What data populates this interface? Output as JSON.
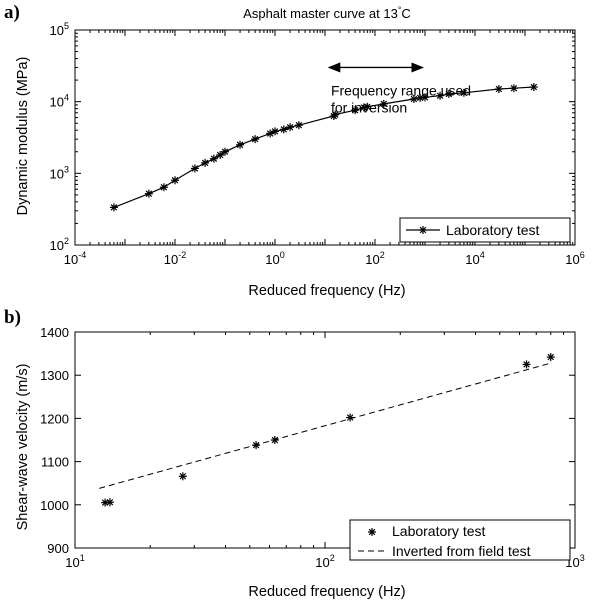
{
  "chart_data": [
    {
      "panel": "a)",
      "type": "line",
      "title": "Asphalt master curve at 13",
      "title_degree": "°",
      "title_unit": "C",
      "xlabel": "Reduced frequency (Hz)",
      "ylabel": "Dynamic modulus (MPa)",
      "x_scale": "log",
      "y_scale": "log",
      "xlim": [
        0.0001,
        1000000
      ],
      "ylim": [
        100,
        100000
      ],
      "x_ticks": [
        {
          "base": "10",
          "exp": "-4",
          "value": 0.0001
        },
        {
          "base": "10",
          "exp": "-2",
          "value": 0.01
        },
        {
          "base": "10",
          "exp": "0",
          "value": 1
        },
        {
          "base": "10",
          "exp": "2",
          "value": 100
        },
        {
          "base": "10",
          "exp": "4",
          "value": 10000
        },
        {
          "base": "10",
          "exp": "6",
          "value": 1000000
        }
      ],
      "y_ticks": [
        {
          "base": "10",
          "exp": "2",
          "value": 100
        },
        {
          "base": "10",
          "exp": "3",
          "value": 1000
        },
        {
          "base": "10",
          "exp": "4",
          "value": 10000
        },
        {
          "base": "10",
          "exp": "5",
          "value": 100000
        }
      ],
      "grid": false,
      "legend_position": "bottom-right",
      "series": [
        {
          "name": "Laboratory test",
          "style": "solid line with asterisk markers",
          "points": [
            [
              0.0006,
              335
            ],
            [
              0.003,
              520
            ],
            [
              0.006,
              640
            ],
            [
              0.01,
              800
            ],
            [
              0.025,
              1170
            ],
            [
              0.04,
              1400
            ],
            [
              0.06,
              1600
            ],
            [
              0.08,
              1800
            ],
            [
              0.1,
              2000
            ],
            [
              0.2,
              2500
            ],
            [
              0.4,
              3000
            ],
            [
              0.8,
              3600
            ],
            [
              1,
              3850
            ],
            [
              1.5,
              4100
            ],
            [
              2,
              4400
            ],
            [
              3,
              4700
            ],
            [
              15,
              6300
            ],
            [
              16,
              6600
            ],
            [
              40,
              7600
            ],
            [
              60,
              8300
            ],
            [
              70,
              8500
            ],
            [
              150,
              9300
            ],
            [
              600,
              10900
            ],
            [
              800,
              11300
            ],
            [
              1000,
              11500
            ],
            [
              2000,
              12100
            ],
            [
              3000,
              12800
            ],
            [
              6000,
              13300
            ],
            [
              30000,
              15000
            ],
            [
              60000,
              15400
            ],
            [
              150000,
              16000
            ]
          ]
        }
      ],
      "annotation": {
        "text_line1": "Frequency range used",
        "text_line2": "for inversion",
        "arrow_from": 12,
        "arrow_to": 900,
        "arrow_y": 30000
      }
    },
    {
      "panel": "b)",
      "type": "scatter",
      "title": "",
      "xlabel": "Reduced frequency (Hz)",
      "ylabel": "Shear-wave velocity (m/s)",
      "x_scale": "log",
      "y_scale": "linear",
      "xlim": [
        10,
        1000
      ],
      "ylim": [
        900,
        1400
      ],
      "x_ticks": [
        {
          "base": "10",
          "exp": "1",
          "value": 10
        },
        {
          "base": "10",
          "exp": "2",
          "value": 100
        },
        {
          "base": "10",
          "exp": "3",
          "value": 1000
        }
      ],
      "y_ticks": [
        900,
        1000,
        1100,
        1200,
        1300,
        1400
      ],
      "grid": false,
      "legend_position": "bottom-right",
      "series": [
        {
          "name": "Laboratory test",
          "style": "asterisk markers",
          "points": [
            [
              13.2,
              1005
            ],
            [
              13.8,
              1006
            ],
            [
              27,
              1066
            ],
            [
              53,
              1138
            ],
            [
              63,
              1150
            ],
            [
              126,
              1202
            ],
            [
              640,
              1325
            ],
            [
              800,
              1342
            ]
          ]
        },
        {
          "name": "Inverted from field test",
          "style": "dashed line",
          "points": [
            [
              12.5,
              1038
            ],
            [
              800,
              1328
            ]
          ]
        }
      ]
    }
  ]
}
